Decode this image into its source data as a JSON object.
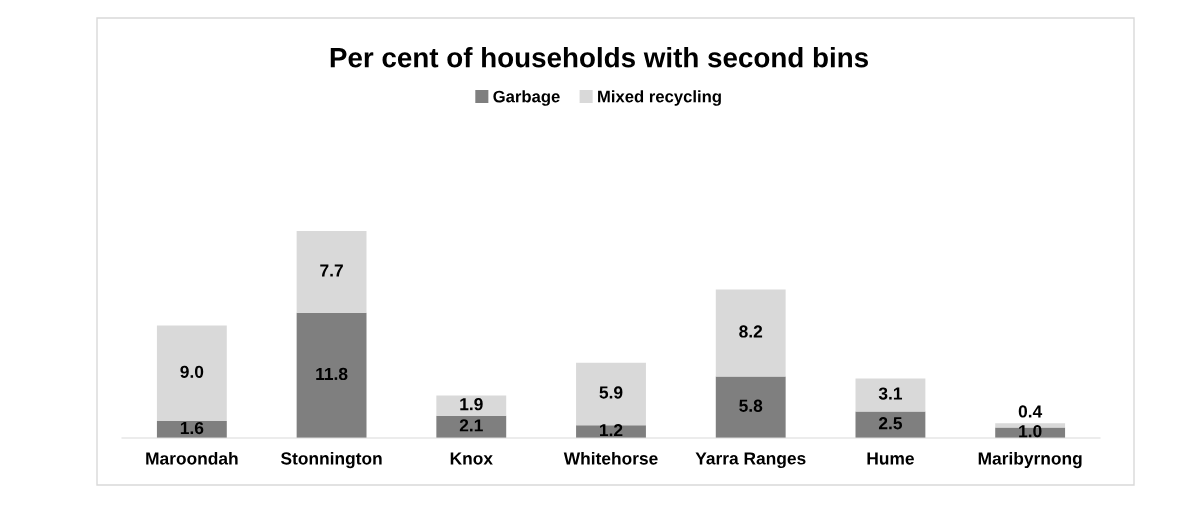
{
  "chart_data": {
    "type": "bar",
    "title": "Per cent of households with second bins",
    "categories": [
      "Maroondah",
      "Stonnington",
      "Knox",
      "Whitehorse",
      "Yarra Ranges",
      "Hume",
      "Maribyrnong"
    ],
    "stacked": true,
    "legend": "top",
    "grid": false,
    "series": [
      {
        "name": "Garbage",
        "color": "#7f7f7f",
        "values": [
          1.6,
          11.8,
          2.1,
          1.2,
          5.8,
          2.5,
          1.0
        ],
        "value_labels": [
          "1.6",
          "11.8",
          "2.1",
          "1.2",
          "5.8",
          "2.5",
          "1.0"
        ]
      },
      {
        "name": "Mixed recycling",
        "color": "#d9d9d9",
        "values": [
          9.0,
          7.7,
          1.9,
          5.9,
          8.2,
          3.1,
          0.4
        ],
        "value_labels": [
          "9.0",
          "7.7",
          "1.9",
          "5.9",
          "8.2",
          "3.1",
          "0.4"
        ]
      }
    ]
  }
}
